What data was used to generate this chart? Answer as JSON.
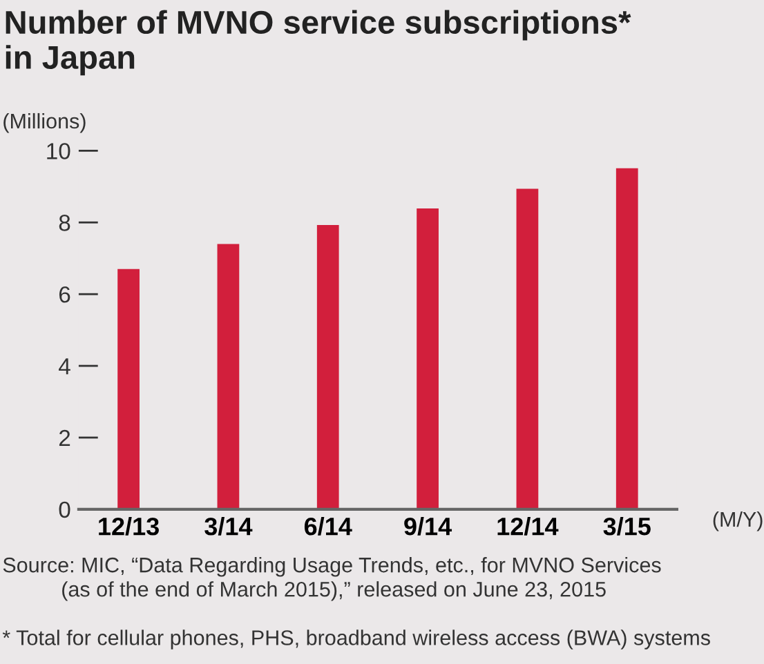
{
  "chart_data": {
    "type": "bar",
    "title": "Number of MVNO service subscriptions*\nin Japan",
    "ylabel": "(Millions)",
    "xlabel": "(M/Y)",
    "categories": [
      "12/13",
      "3/14",
      "6/14",
      "9/14",
      "12/14",
      "3/15"
    ],
    "values": [
      6.7,
      7.4,
      7.93,
      8.39,
      8.94,
      9.51
    ],
    "color": "#d21f3c",
    "ylim": [
      0,
      10
    ],
    "yticks": [
      0,
      2,
      4,
      6,
      8,
      10
    ],
    "grid": false,
    "annotations": [
      "Source: MIC, “Data Regarding Usage Trends, etc., for MVNO Services\n          (as of the end of March 2015),” released on June 23, 2015",
      "* Total for cellular phones, PHS, broadband wireless access (BWA) systems"
    ]
  }
}
